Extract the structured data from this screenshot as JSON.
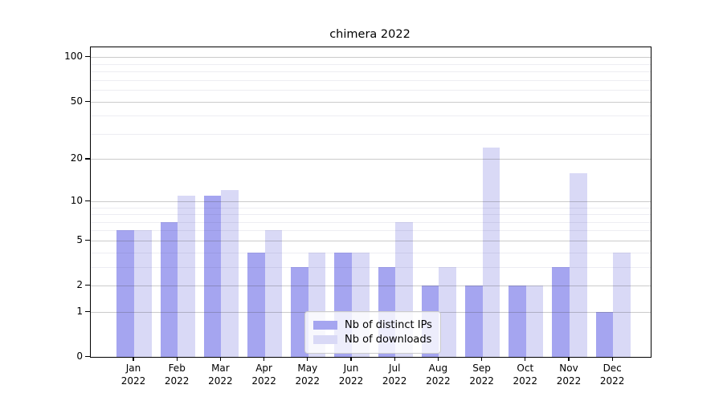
{
  "chart_data": {
    "type": "bar",
    "title": "chimera 2022",
    "categories": [
      {
        "month": "Jan",
        "year": "2022"
      },
      {
        "month": "Feb",
        "year": "2022"
      },
      {
        "month": "Mar",
        "year": "2022"
      },
      {
        "month": "Apr",
        "year": "2022"
      },
      {
        "month": "May",
        "year": "2022"
      },
      {
        "month": "Jun",
        "year": "2022"
      },
      {
        "month": "Jul",
        "year": "2022"
      },
      {
        "month": "Aug",
        "year": "2022"
      },
      {
        "month": "Sep",
        "year": "2022"
      },
      {
        "month": "Oct",
        "year": "2022"
      },
      {
        "month": "Nov",
        "year": "2022"
      },
      {
        "month": "Dec",
        "year": "2022"
      }
    ],
    "series": [
      {
        "name": "Nb of distinct IPs",
        "color": "#a5a5f0",
        "values": [
          6,
          7,
          11,
          4,
          3,
          4,
          3,
          2,
          2,
          2,
          3,
          1
        ]
      },
      {
        "name": "Nb of downloads",
        "color": "#d9d9f6",
        "values": [
          6,
          11,
          12,
          6,
          4,
          4,
          7,
          3,
          24,
          2,
          16,
          4
        ]
      }
    ],
    "xlabel": "",
    "ylabel": "",
    "yscale": "log1p",
    "ylim": [
      0,
      116
    ],
    "y_major_ticks": [
      0,
      1,
      2,
      5,
      10,
      20,
      50,
      100
    ],
    "y_minor_ticks": [
      3,
      4,
      6,
      7,
      8,
      9,
      30,
      40,
      60,
      70,
      80,
      90
    ],
    "grid": true,
    "legend_position": "lower center"
  }
}
